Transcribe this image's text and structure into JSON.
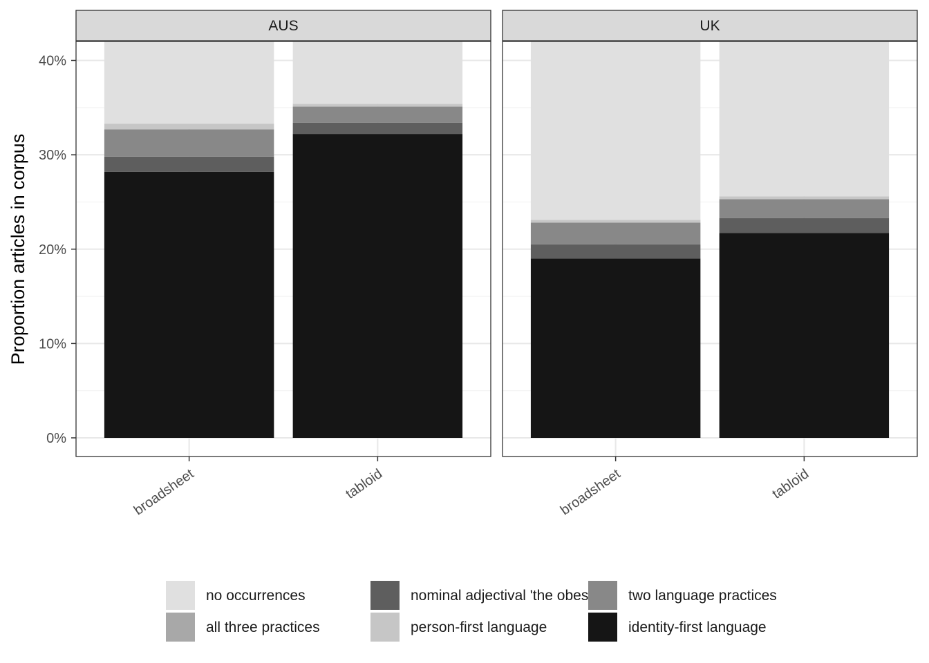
{
  "chart_data": {
    "type": "bar",
    "stacked": true,
    "ylabel": "Proportion articles in corpus",
    "y_tick_labels": [
      "0%",
      "10%",
      "20%",
      "30%",
      "40%"
    ],
    "y_ticks": [
      0,
      10,
      20,
      30,
      40
    ],
    "ylim": [
      0,
      42
    ],
    "grid": true,
    "legend_position": "bottom",
    "categories": [
      "broadsheet",
      "tabloid"
    ],
    "facets": [
      {
        "label": "AUS",
        "stacks": [
          {
            "category": "broadsheet",
            "values": [
              28.2,
              1.6,
              2.9,
              0.0,
              0.6,
              8.7
            ]
          },
          {
            "category": "tabloid",
            "values": [
              32.2,
              1.2,
              1.7,
              0.0,
              0.3,
              6.6
            ]
          }
        ]
      },
      {
        "label": "UK",
        "stacks": [
          {
            "category": "broadsheet",
            "values": [
              19.0,
              1.5,
              2.3,
              0.0,
              0.3,
              18.9
            ]
          },
          {
            "category": "tabloid",
            "values": [
              21.7,
              1.6,
              2.0,
              0.0,
              0.3,
              16.4
            ]
          }
        ]
      }
    ],
    "series": [
      {
        "name": "identity-first language",
        "color": "#151515"
      },
      {
        "name": "nominal adjectival 'the obese'",
        "color": "#5e5e5e"
      },
      {
        "name": "two language practices",
        "color": "#888888"
      },
      {
        "name": "all three practices",
        "color": "#a8a8a8"
      },
      {
        "name": "person-first language",
        "color": "#c6c6c6"
      },
      {
        "name": "no occurrences",
        "color": "#e0e0e0"
      }
    ],
    "legend_order": [
      5,
      3,
      1,
      4,
      2,
      0
    ]
  }
}
